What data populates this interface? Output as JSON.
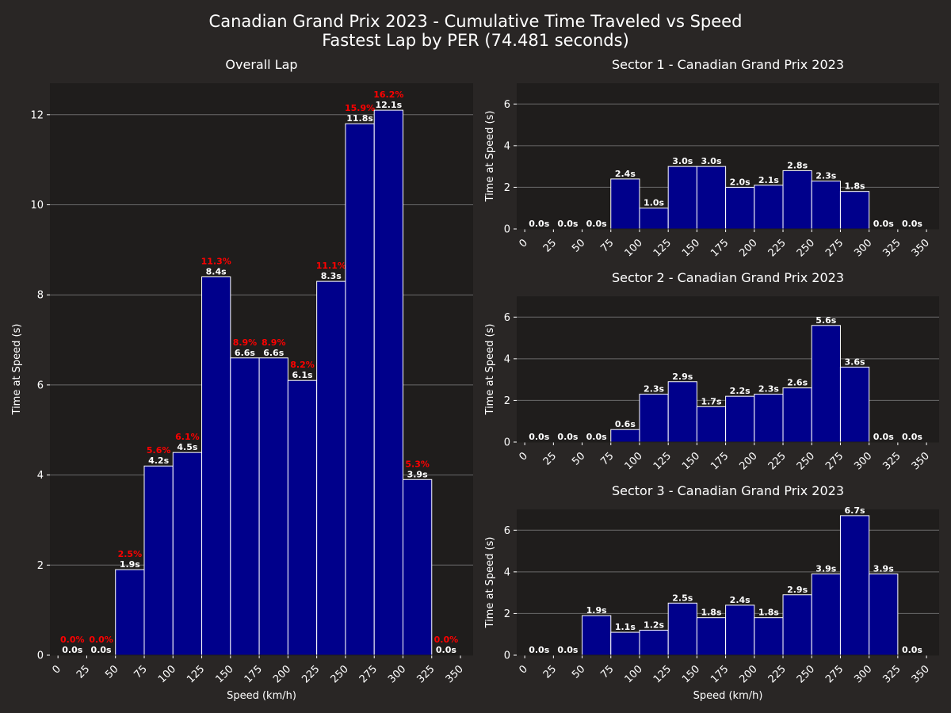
{
  "figure": {
    "title_line1": "Canadian Grand Prix 2023 - Cumulative Time Traveled vs Speed",
    "title_line2": "Fastest Lap by PER (74.481 seconds)"
  },
  "colors": {
    "background": "#292625",
    "plot_background": "#1f1d1c",
    "bar_fill": "#00008b",
    "bar_edge": "#ffffff",
    "grid": "#6a6a6a",
    "text": "#ffffff",
    "percent_label": "#ff0000"
  },
  "chart_data": [
    {
      "id": "overall",
      "type": "bar",
      "title": "Overall Lap",
      "xlabel": "Speed (km/h)",
      "ylabel": "Time at Speed (s)",
      "ylim": [
        0,
        12.7
      ],
      "yticks": [
        0,
        2,
        4,
        6,
        8,
        10,
        12
      ],
      "xticks": [
        "0",
        "25",
        "50",
        "75",
        "100",
        "125",
        "150",
        "175",
        "200",
        "225",
        "250",
        "275",
        "300",
        "325",
        "350"
      ],
      "bin_width": 25,
      "bins": [
        0,
        25,
        50,
        75,
        100,
        125,
        150,
        175,
        200,
        225,
        250,
        275,
        300,
        325
      ],
      "values": [
        0.0,
        0.0,
        1.9,
        4.2,
        4.5,
        8.4,
        6.6,
        6.6,
        6.1,
        8.3,
        11.8,
        12.1,
        3.9,
        0.0
      ],
      "value_labels": [
        "0.0s",
        "0.0s",
        "1.9s",
        "4.2s",
        "4.5s",
        "8.4s",
        "6.6s",
        "6.6s",
        "6.1s",
        "8.3s",
        "11.8s",
        "12.1s",
        "3.9s",
        "0.0s"
      ],
      "percent_labels": [
        "0.0%",
        "0.0%",
        "2.5%",
        "5.6%",
        "6.1%",
        "11.3%",
        "8.9%",
        "8.9%",
        "8.2%",
        "11.1%",
        "15.9%",
        "16.2%",
        "5.3%",
        "0.0%"
      ],
      "grid": true
    },
    {
      "id": "sector1",
      "type": "bar",
      "title": "Sector 1 - Canadian Grand Prix 2023",
      "xlabel": "",
      "ylabel": "Time at Speed (s)",
      "ylim": [
        0,
        7
      ],
      "yticks": [
        0,
        2,
        4,
        6
      ],
      "xticks": [
        "0",
        "25",
        "50",
        "75",
        "100",
        "125",
        "150",
        "175",
        "200",
        "225",
        "250",
        "275",
        "300",
        "325",
        "350"
      ],
      "bin_width": 25,
      "bins": [
        0,
        25,
        50,
        75,
        100,
        125,
        150,
        175,
        200,
        225,
        250,
        275,
        300,
        325
      ],
      "values": [
        0.0,
        0.0,
        0.0,
        2.4,
        1.0,
        3.0,
        3.0,
        2.0,
        2.1,
        2.8,
        2.3,
        1.8,
        0.0,
        0.0
      ],
      "value_labels": [
        "0.0s",
        "0.0s",
        "0.0s",
        "2.4s",
        "1.0s",
        "3.0s",
        "3.0s",
        "2.0s",
        "2.1s",
        "2.8s",
        "2.3s",
        "1.8s",
        "0.0s",
        "0.0s"
      ],
      "grid": true
    },
    {
      "id": "sector2",
      "type": "bar",
      "title": "Sector 2 - Canadian Grand Prix 2023",
      "xlabel": "",
      "ylabel": "Time at Speed (s)",
      "ylim": [
        0,
        7
      ],
      "yticks": [
        0,
        2,
        4,
        6
      ],
      "xticks": [
        "0",
        "25",
        "50",
        "75",
        "100",
        "125",
        "150",
        "175",
        "200",
        "225",
        "250",
        "275",
        "300",
        "325",
        "350"
      ],
      "bin_width": 25,
      "bins": [
        0,
        25,
        50,
        75,
        100,
        125,
        150,
        175,
        200,
        225,
        250,
        275,
        300,
        325
      ],
      "values": [
        0.0,
        0.0,
        0.0,
        0.6,
        2.3,
        2.9,
        1.7,
        2.2,
        2.3,
        2.6,
        5.6,
        3.6,
        0.0,
        0.0
      ],
      "value_labels": [
        "0.0s",
        "0.0s",
        "0.0s",
        "0.6s",
        "2.3s",
        "2.9s",
        "1.7s",
        "2.2s",
        "2.3s",
        "2.6s",
        "5.6s",
        "3.6s",
        "0.0s",
        "0.0s"
      ],
      "grid": true
    },
    {
      "id": "sector3",
      "type": "bar",
      "title": "Sector 3 - Canadian Grand Prix 2023",
      "xlabel": "Speed (km/h)",
      "ylabel": "Time at Speed (s)",
      "ylim": [
        0,
        7
      ],
      "yticks": [
        0,
        2,
        4,
        6
      ],
      "xticks": [
        "0",
        "25",
        "50",
        "75",
        "100",
        "125",
        "150",
        "175",
        "200",
        "225",
        "250",
        "275",
        "300",
        "325",
        "350"
      ],
      "bin_width": 25,
      "bins": [
        0,
        25,
        50,
        75,
        100,
        125,
        150,
        175,
        200,
        225,
        250,
        275,
        300,
        325
      ],
      "values": [
        0.0,
        0.0,
        1.9,
        1.1,
        1.2,
        2.5,
        1.8,
        2.4,
        1.8,
        2.9,
        3.9,
        6.7,
        3.9,
        0.0
      ],
      "value_labels": [
        "0.0s",
        "0.0s",
        "1.9s",
        "1.1s",
        "1.2s",
        "2.5s",
        "1.8s",
        "2.4s",
        "1.8s",
        "2.9s",
        "3.9s",
        "6.7s",
        "3.9s",
        "0.0s"
      ],
      "grid": true
    }
  ]
}
